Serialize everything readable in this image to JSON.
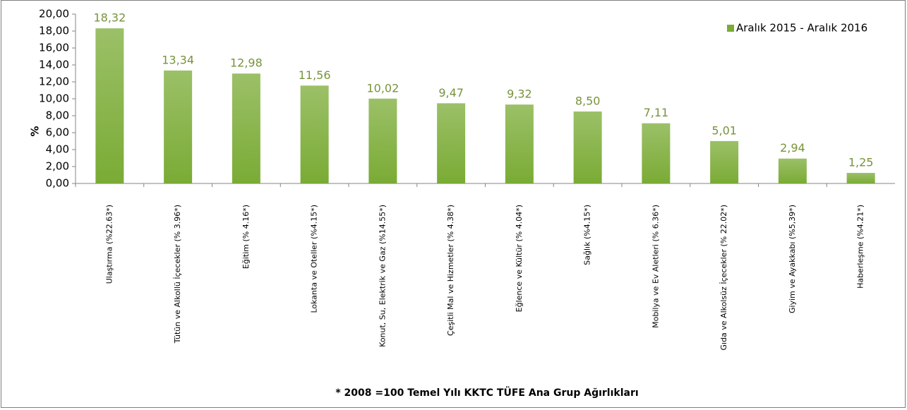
{
  "chart_data": {
    "type": "bar",
    "y_label": "%",
    "footnote": "*  2008 =100 Temel Yılı KKTC TÜFE Ana Grup Ağırlıkları",
    "categories": [
      "Ulaştırma (%22.63*)",
      "Tütün ve Alkollü İçecekler (% 3.96*)",
      "Eğitim (% 4.16*)",
      "Lokanta ve Oteller (%4.15*)",
      "Konut, Su, Elektrik ve Gaz (%14.55*)",
      "Çeşitli Mal ve Hizmetler (% 4.38*)",
      "Eğlence ve Kültür (% 4.04*)",
      "Sağlık (%4.15*)",
      "Mobilya ve Ev Aletleri (% 6.36*)",
      "Gıda ve Alkolsüz İçecekler (% 22.02*)",
      "Giyim ve Ayakkabı (%5,39*)",
      "Haberleşme (%4.21*)"
    ],
    "series": [
      {
        "name": "Aralık 2015 - Aralık 2016",
        "color": "#7aab35",
        "values": [
          18.32,
          13.34,
          12.98,
          11.56,
          10.02,
          9.47,
          9.32,
          8.5,
          7.11,
          5.01,
          2.94,
          1.25
        ],
        "value_labels": [
          "18,32",
          "13,34",
          "12,98",
          "11,56",
          "10,02",
          "9,47",
          "9,32",
          "8,50",
          "7,11",
          "5,01",
          "2,94",
          "1,25"
        ]
      }
    ],
    "ylim": [
      0,
      20
    ],
    "yticks": [
      {
        "value": 0,
        "label": "0,00"
      },
      {
        "value": 2,
        "label": "2,00"
      },
      {
        "value": 4,
        "label": "4,00"
      },
      {
        "value": 6,
        "label": "6,00"
      },
      {
        "value": 8,
        "label": "8,00"
      },
      {
        "value": 10,
        "label": "10,00"
      },
      {
        "value": 12,
        "label": "12,00"
      },
      {
        "value": 14,
        "label": "14,00"
      },
      {
        "value": 16,
        "label": "16,00"
      },
      {
        "value": 18,
        "label": "18,00"
      },
      {
        "value": 20,
        "label": "20,00"
      }
    ],
    "grid": false,
    "legend": "top-right"
  }
}
